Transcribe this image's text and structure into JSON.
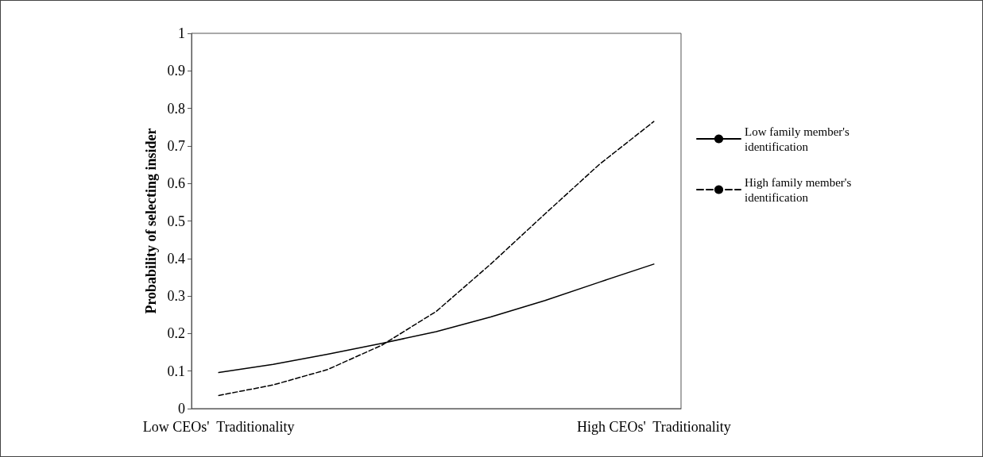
{
  "chart_data": {
    "type": "line",
    "ylabel": "Probability of selecting insider",
    "categories": [
      "Low CEOs'  Traditionality",
      null,
      null,
      null,
      null,
      null,
      null,
      null,
      "High CEOs'  Traditionality"
    ],
    "series": [
      {
        "name": "Low family member's identification",
        "color": "#000000",
        "line_style": "solid",
        "values": [
          0.096,
          0.118,
          0.145,
          0.174,
          0.205,
          0.244,
          0.288,
          0.337,
          0.385
        ]
      },
      {
        "name": "High family member's identification",
        "color": "#000000",
        "line_style": "dashed",
        "values": [
          0.035,
          0.063,
          0.104,
          0.169,
          0.259,
          0.385,
          0.519,
          0.651,
          0.765
        ]
      }
    ],
    "ylim": [
      0,
      1
    ],
    "yticks": [
      0,
      0.1,
      0.2,
      0.3,
      0.4,
      0.5,
      0.6,
      0.7,
      0.8,
      0.9,
      1
    ],
    "grid": false,
    "legend": "right",
    "marker": "none"
  }
}
